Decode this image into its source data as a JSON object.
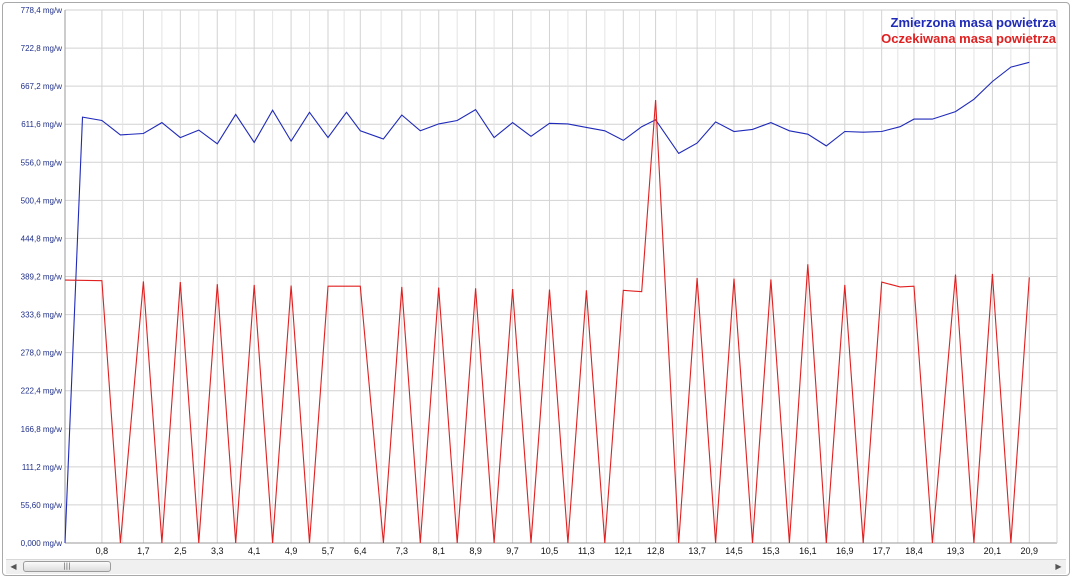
{
  "chart_data": {
    "type": "line",
    "title": "",
    "xlabel": "",
    "ylabel": "",
    "ylim": [
      0,
      778.4
    ],
    "xlim": [
      0,
      21.5
    ],
    "grid": true,
    "legend_position": "top-right",
    "y_ticks": [
      "0,000 mg/w",
      "55,60 mg/w",
      "111,2 mg/w",
      "166,8 mg/w",
      "222,4 mg/w",
      "278,0 mg/w",
      "333,6 mg/w",
      "389,2 mg/w",
      "444,8 mg/w",
      "500,4 mg/w",
      "556,0 mg/w",
      "611,6 mg/w",
      "667,2 mg/w",
      "722,8 mg/w",
      "778,4 mg/w"
    ],
    "x_ticks": [
      "0,8",
      "1,7",
      "2,5",
      "3,3",
      "4,1",
      "4,9",
      "5,7",
      "6,4",
      "7,3",
      "8,1",
      "8,9",
      "9,7",
      "10,5",
      "11,3",
      "12,1",
      "12,8",
      "13,7",
      "14,5",
      "15,3",
      "16,1",
      "16,9",
      "17,7",
      "18,4",
      "19,3",
      "20,1",
      "20,9"
    ],
    "series": [
      {
        "name": "Zmierzona masa powietrza",
        "color": "#1f2ab8",
        "x": [
          0.0,
          0.38,
          0.8,
          1.2,
          1.7,
          2.1,
          2.5,
          2.9,
          3.3,
          3.7,
          4.1,
          4.5,
          4.9,
          5.3,
          5.7,
          6.1,
          6.4,
          6.9,
          7.3,
          7.7,
          8.1,
          8.5,
          8.9,
          9.3,
          9.7,
          10.1,
          10.5,
          10.9,
          11.3,
          11.7,
          12.1,
          12.5,
          12.8,
          13.3,
          13.7,
          14.1,
          14.5,
          14.9,
          15.3,
          15.7,
          16.1,
          16.5,
          16.9,
          17.3,
          17.7,
          18.1,
          18.4,
          18.8,
          19.3,
          19.7,
          20.1,
          20.5,
          20.9
        ],
        "values": [
          0,
          622,
          617,
          596,
          598,
          614,
          592,
          603,
          583,
          626,
          585,
          632,
          587,
          629,
          592,
          629,
          602,
          590,
          625,
          602,
          612,
          617,
          633,
          592,
          614,
          594,
          613,
          612,
          607,
          602,
          588,
          608,
          618,
          569,
          584,
          615,
          601,
          604,
          614,
          602,
          597,
          580,
          601,
          600,
          601,
          608,
          619,
          619,
          630,
          648,
          674,
          695,
          702
        ]
      },
      {
        "name": "Oczekiwana masa powietrza",
        "color": "#e02020",
        "x": [
          0.0,
          0.8,
          1.2,
          1.7,
          2.1,
          2.5,
          2.9,
          3.3,
          3.7,
          4.1,
          4.5,
          4.9,
          5.3,
          5.7,
          6.1,
          6.4,
          6.9,
          7.3,
          7.7,
          8.1,
          8.5,
          8.9,
          9.3,
          9.7,
          10.1,
          10.5,
          10.9,
          11.3,
          11.7,
          12.1,
          12.5,
          12.8,
          13.3,
          13.7,
          14.1,
          14.5,
          14.9,
          15.3,
          15.7,
          16.1,
          16.5,
          16.9,
          17.3,
          17.7,
          18.1,
          18.4,
          18.8,
          19.3,
          19.7,
          20.1,
          20.5,
          20.9
        ],
        "values": [
          384,
          383,
          0,
          382,
          0,
          381,
          0,
          378,
          0,
          377,
          0,
          376,
          0,
          375,
          375,
          375,
          0,
          374,
          0,
          373,
          0,
          372,
          0,
          371,
          0,
          370,
          0,
          369,
          0,
          369,
          367,
          647,
          0,
          387,
          0,
          386,
          0,
          385,
          0,
          407,
          0,
          377,
          0,
          381,
          374,
          375,
          0,
          392,
          0,
          393,
          0,
          388
        ]
      }
    ]
  },
  "scrollbar": {
    "left_arrow": "◀",
    "right_arrow": "▶",
    "thumb_grip": "|||"
  }
}
